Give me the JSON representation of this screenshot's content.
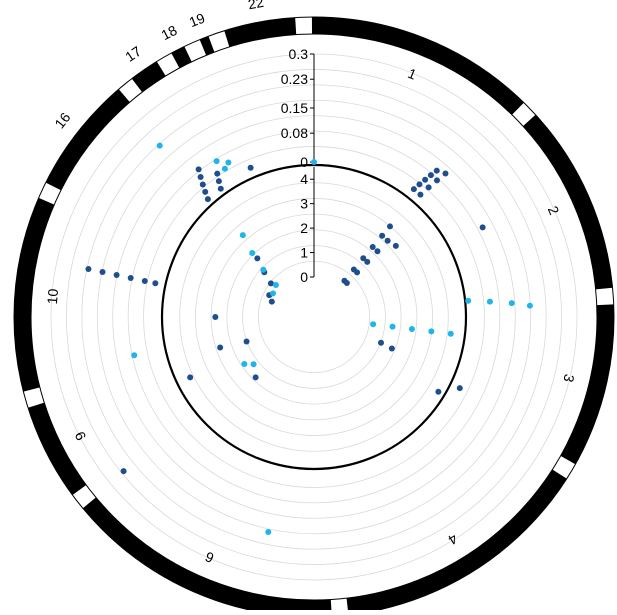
{
  "colors": {
    "ring": "#000000",
    "ring_gap": "#ffffff",
    "grid": "#d9d9d9",
    "series_dark": "#1f4e8c",
    "series_light": "#1fb4ea",
    "axis": "#000000"
  },
  "chart_data": {
    "type": "scatter",
    "layout": "circos",
    "title": "",
    "chromosomes": [
      {
        "label": "1",
        "start_deg": -2,
        "end_deg": 46
      },
      {
        "label": "2",
        "start_deg": 46,
        "end_deg": 86
      },
      {
        "label": "3",
        "start_deg": 86,
        "end_deg": 121
      },
      {
        "label": "4",
        "start_deg": 121,
        "end_deg": 175
      },
      {
        "label": "6",
        "start_deg": 175,
        "end_deg": 232
      },
      {
        "label": "9",
        "start_deg": 232,
        "end_deg": 254
      },
      {
        "label": "10",
        "start_deg": 254,
        "end_deg": 295
      },
      {
        "label": "16",
        "start_deg": 295,
        "end_deg": 321
      },
      {
        "label": "17",
        "start_deg": 321,
        "end_deg": 330
      },
      {
        "label": "18",
        "start_deg": 330,
        "end_deg": 336
      },
      {
        "label": "19",
        "start_deg": 336,
        "end_deg": 341
      },
      {
        "label": "22",
        "start_deg": 341,
        "end_deg": 358
      }
    ],
    "outer_track": {
      "ylim": [
        0,
        0.3
      ],
      "tick_labels": [
        "0",
        "0.08",
        "0.15",
        "0.23",
        "0.3"
      ],
      "series": [
        {
          "color_key": "series_dark",
          "points": [
            [
              38,
              0.02
            ],
            [
              38.5,
              0.04
            ],
            [
              39,
              0.06
            ],
            [
              39.5,
              0.08
            ],
            [
              40,
              0.1
            ],
            [
              41,
              0.02
            ],
            [
              41.5,
              0.05
            ],
            [
              42,
              0.08
            ],
            [
              42.5,
              0.11
            ],
            [
              62,
              0.1
            ],
            [
              116,
              0.02
            ],
            [
              231,
              0.25
            ],
            [
              282,
              0.02
            ],
            [
              282,
              0.05
            ],
            [
              282,
              0.09
            ],
            [
              282,
              0.13
            ],
            [
              282,
              0.17
            ],
            [
              282,
              0.21
            ],
            [
              318,
              0.01
            ],
            [
              319,
              0.03
            ],
            [
              320,
              0.05
            ],
            [
              321,
              0.07
            ],
            [
              322,
              0.09
            ],
            [
              324,
              0.01
            ],
            [
              325,
              0.03
            ],
            [
              326,
              0.05
            ],
            [
              337,
              0.02
            ]
          ]
        },
        {
          "color_key": "series_light",
          "points": [
            [
              84,
              0.0
            ],
            [
              85,
              0.06
            ],
            [
              86,
              0.12
            ],
            [
              87,
              0.17
            ],
            [
              192,
              0.18
            ],
            [
              258,
              0.08
            ],
            [
              318,
              0.21
            ],
            [
              328,
              0.08
            ],
            [
              329,
              0.05
            ],
            [
              331,
              0.06
            ],
            [
              0,
              0.0
            ]
          ]
        }
      ]
    },
    "inner_track": {
      "ylim": [
        0,
        4.5
      ],
      "tick_labels": [
        "0",
        "1",
        "2",
        "3",
        "4"
      ],
      "series": [
        {
          "color_key": "series_dark",
          "points": [
            [
              40,
              0.3
            ],
            [
              40,
              0.9
            ],
            [
              40,
              1.5
            ],
            [
              40,
              2.1
            ],
            [
              40,
              2.7
            ],
            [
              40,
              3.2
            ],
            [
              44,
              0.3
            ],
            [
              44,
              0.9
            ],
            [
              44,
              1.5
            ],
            [
              44,
              2.1
            ],
            [
              44,
              2.7
            ],
            [
              49,
              2.8
            ],
            [
              111,
              1.3
            ],
            [
              112,
              1.8
            ],
            [
              121,
              4.3
            ],
            [
              244,
              4.0
            ],
            [
              250,
              1.3
            ],
            [
              252,
              2.4
            ],
            [
              224,
              1.8
            ],
            [
              308,
              0.6
            ],
            [
              312,
              1.1
            ],
            [
              316,
              1.7
            ],
            [
              290,
              0.2
            ],
            [
              296,
              0.4
            ],
            [
              270,
              2.4
            ]
          ]
        },
        {
          "color_key": "series_light",
          "points": [
            [
              97,
              0.8
            ],
            [
              97,
              1.6
            ],
            [
              97,
              2.4
            ],
            [
              97,
              3.2
            ],
            [
              97,
              4.0
            ],
            [
              310,
              0.4
            ],
            [
              313,
              1.2
            ],
            [
              316,
              2.0
            ],
            [
              319,
              2.8
            ],
            [
              232,
              1.5
            ],
            [
              236,
              1.8
            ],
            [
              300,
              0.3
            ]
          ]
        }
      ]
    }
  }
}
